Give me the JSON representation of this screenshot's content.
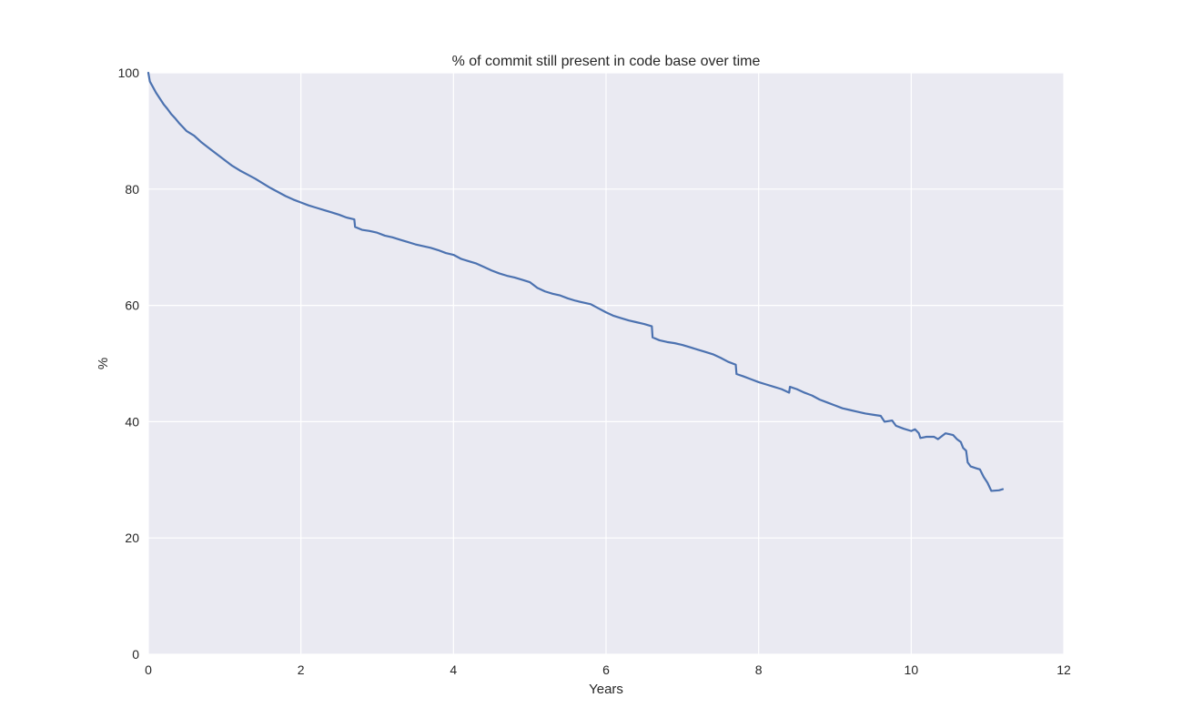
{
  "chart_data": {
    "type": "line",
    "title": "% of commit still present in code base over time",
    "xlabel": "Years",
    "ylabel": "%",
    "xlim": [
      0,
      12
    ],
    "ylim": [
      0,
      100
    ],
    "xticks": [
      "0",
      "2",
      "4",
      "6",
      "8",
      "10",
      "12"
    ],
    "yticks": [
      "0",
      "20",
      "40",
      "60",
      "80",
      "100"
    ],
    "grid": true,
    "colors": {
      "series": "#4c72b0",
      "background": "#eaeaf2",
      "grid": "#ffffff"
    },
    "series": [
      {
        "points": [
          [
            0,
            100
          ],
          [
            0.02,
            98.5
          ],
          [
            0.05,
            97.8
          ],
          [
            0.1,
            96.6
          ],
          [
            0.15,
            95.6
          ],
          [
            0.2,
            94.6
          ],
          [
            0.25,
            93.8
          ],
          [
            0.3,
            92.9
          ],
          [
            0.35,
            92.2
          ],
          [
            0.4,
            91.4
          ],
          [
            0.45,
            90.7
          ],
          [
            0.5,
            90.0
          ],
          [
            0.6,
            89.2
          ],
          [
            0.7,
            88.0
          ],
          [
            0.8,
            87.0
          ],
          [
            0.9,
            86.0
          ],
          [
            1.0,
            85.0
          ],
          [
            1.1,
            84.0
          ],
          [
            1.2,
            83.2
          ],
          [
            1.3,
            82.5
          ],
          [
            1.4,
            81.8
          ],
          [
            1.5,
            81.0
          ],
          [
            1.6,
            80.2
          ],
          [
            1.7,
            79.5
          ],
          [
            1.8,
            78.8
          ],
          [
            1.9,
            78.2
          ],
          [
            2.0,
            77.7
          ],
          [
            2.1,
            77.2
          ],
          [
            2.2,
            76.8
          ],
          [
            2.3,
            76.4
          ],
          [
            2.4,
            76.0
          ],
          [
            2.5,
            75.6
          ],
          [
            2.6,
            75.1
          ],
          [
            2.7,
            74.8
          ],
          [
            2.71,
            73.5
          ],
          [
            2.8,
            73.0
          ],
          [
            2.9,
            72.8
          ],
          [
            3.0,
            72.5
          ],
          [
            3.1,
            72.0
          ],
          [
            3.2,
            71.7
          ],
          [
            3.3,
            71.3
          ],
          [
            3.4,
            70.9
          ],
          [
            3.5,
            70.5
          ],
          [
            3.6,
            70.2
          ],
          [
            3.7,
            69.9
          ],
          [
            3.8,
            69.5
          ],
          [
            3.9,
            69.0
          ],
          [
            4.0,
            68.7
          ],
          [
            4.1,
            68.0
          ],
          [
            4.2,
            67.6
          ],
          [
            4.3,
            67.2
          ],
          [
            4.4,
            66.6
          ],
          [
            4.5,
            66.0
          ],
          [
            4.6,
            65.5
          ],
          [
            4.7,
            65.1
          ],
          [
            4.8,
            64.8
          ],
          [
            4.9,
            64.4
          ],
          [
            5.0,
            64.0
          ],
          [
            5.1,
            63.0
          ],
          [
            5.2,
            62.4
          ],
          [
            5.3,
            62.0
          ],
          [
            5.4,
            61.7
          ],
          [
            5.5,
            61.2
          ],
          [
            5.6,
            60.8
          ],
          [
            5.7,
            60.5
          ],
          [
            5.8,
            60.2
          ],
          [
            5.9,
            59.5
          ],
          [
            6.0,
            58.8
          ],
          [
            6.1,
            58.2
          ],
          [
            6.2,
            57.8
          ],
          [
            6.3,
            57.4
          ],
          [
            6.4,
            57.1
          ],
          [
            6.5,
            56.8
          ],
          [
            6.6,
            56.4
          ],
          [
            6.61,
            54.5
          ],
          [
            6.7,
            54.0
          ],
          [
            6.8,
            53.7
          ],
          [
            6.9,
            53.5
          ],
          [
            7.0,
            53.2
          ],
          [
            7.1,
            52.8
          ],
          [
            7.2,
            52.4
          ],
          [
            7.3,
            52.0
          ],
          [
            7.4,
            51.6
          ],
          [
            7.5,
            51.0
          ],
          [
            7.6,
            50.3
          ],
          [
            7.7,
            49.8
          ],
          [
            7.71,
            48.2
          ],
          [
            7.8,
            47.8
          ],
          [
            7.9,
            47.3
          ],
          [
            8.0,
            46.8
          ],
          [
            8.1,
            46.4
          ],
          [
            8.2,
            46.0
          ],
          [
            8.3,
            45.6
          ],
          [
            8.4,
            45.0
          ],
          [
            8.41,
            46.0
          ],
          [
            8.5,
            45.6
          ],
          [
            8.6,
            45.0
          ],
          [
            8.7,
            44.5
          ],
          [
            8.8,
            43.8
          ],
          [
            8.9,
            43.3
          ],
          [
            9.0,
            42.8
          ],
          [
            9.1,
            42.3
          ],
          [
            9.2,
            42.0
          ],
          [
            9.3,
            41.7
          ],
          [
            9.4,
            41.4
          ],
          [
            9.5,
            41.2
          ],
          [
            9.6,
            41.0
          ],
          [
            9.65,
            40.0
          ],
          [
            9.75,
            40.2
          ],
          [
            9.8,
            39.3
          ],
          [
            9.9,
            38.8
          ],
          [
            10.0,
            38.4
          ],
          [
            10.05,
            38.7
          ],
          [
            10.1,
            38.0
          ],
          [
            10.12,
            37.2
          ],
          [
            10.2,
            37.4
          ],
          [
            10.3,
            37.4
          ],
          [
            10.35,
            37.0
          ],
          [
            10.4,
            37.5
          ],
          [
            10.45,
            38.0
          ],
          [
            10.55,
            37.7
          ],
          [
            10.6,
            37.0
          ],
          [
            10.65,
            36.5
          ],
          [
            10.68,
            35.5
          ],
          [
            10.72,
            35.0
          ],
          [
            10.74,
            33.0
          ],
          [
            10.78,
            32.3
          ],
          [
            10.85,
            32.0
          ],
          [
            10.9,
            31.8
          ],
          [
            10.95,
            30.5
          ],
          [
            11.0,
            29.5
          ],
          [
            11.05,
            28.1
          ],
          [
            11.15,
            28.2
          ],
          [
            11.2,
            28.4
          ]
        ]
      }
    ]
  }
}
